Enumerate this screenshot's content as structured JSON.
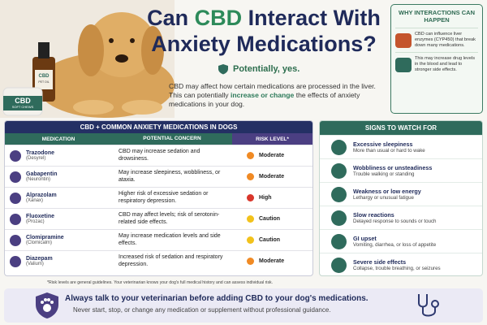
{
  "header": {
    "title_line1": {
      "pre": "Can",
      "highlight": "CBD",
      "post": "Interact With"
    },
    "title_line2": "Anxiety Medications?",
    "answer": "Potentially, yes.",
    "intro": {
      "pre": "CBD may affect how certain medications are processed in the liver. This can potentially",
      "emphasis": "increase or change",
      "post": "the effects of anxiety medications in your dog."
    }
  },
  "products": {
    "bottle_label": "CBD",
    "bottle_sub": "PET OIL",
    "jar_label": "CBD",
    "jar_sub": "SOFT CHEWS"
  },
  "why_box": {
    "title": "WHY INTERACTIONS CAN HAPPEN",
    "items": [
      "CBD can influence liver enzymes (CYP450) that break down many medications.",
      "This may increase drug levels in the blood and lead to stronger side effects."
    ]
  },
  "table": {
    "title": "CBD + COMMON ANXIETY MEDICATIONS IN DOGS",
    "columns": [
      "MEDICATION",
      "POTENTIAL CONCERN",
      "RISK LEVEL*"
    ],
    "rows": [
      {
        "name": "Trazodone",
        "brand": "(Desyrel)",
        "concern": "CBD may increase sedation and drowsiness.",
        "risk": "Moderate",
        "risk_color": "#f08a24"
      },
      {
        "name": "Gabapentin",
        "brand": "(Neurontin)",
        "concern": "May increase sleepiness, wobbliness, or ataxia.",
        "risk": "Moderate",
        "risk_color": "#f08a24"
      },
      {
        "name": "Alprazolam",
        "brand": "(Xanax)",
        "concern": "Higher risk of excessive sedation or respiratory depression.",
        "risk": "High",
        "risk_color": "#d9362b"
      },
      {
        "name": "Fluoxetine",
        "brand": "(Prozac)",
        "concern": "CBD may affect levels; risk of serotonin-related side effects.",
        "risk": "Caution",
        "risk_color": "#f2c21b"
      },
      {
        "name": "Clomipramine",
        "brand": "(Clomicalm)",
        "concern": "May increase medication levels and side effects.",
        "risk": "Caution",
        "risk_color": "#f2c21b"
      },
      {
        "name": "Diazepam",
        "brand": "(Valium)",
        "concern": "Increased risk of sedation and respiratory depression.",
        "risk": "Moderate",
        "risk_color": "#f08a24"
      }
    ],
    "footnote": "*Risk levels are general guidelines. Your veterinarian knows your dog's full medical history and can assess individual risk."
  },
  "signs": {
    "title": "SIGNS TO WATCH FOR",
    "items": [
      {
        "title": "Excessive sleepiness",
        "detail": "More than usual or hard to wake"
      },
      {
        "title": "Wobbliness or unsteadiness",
        "detail": "Trouble walking or standing"
      },
      {
        "title": "Weakness or low energy",
        "detail": "Lethargy or unusual fatigue"
      },
      {
        "title": "Slow reactions",
        "detail": "Delayed response to sounds or touch"
      },
      {
        "title": "GI upset",
        "detail": "Vomiting, diarrhea, or loss of appetite"
      },
      {
        "title": "Severe side effects",
        "detail": "Collapse, trouble breathing, or seizures"
      }
    ]
  },
  "footer": {
    "headline": "Always talk to your veterinarian before adding CBD to your dog's medications.",
    "note": "Never start, stop, or change any medication or supplement without professional guidance."
  }
}
